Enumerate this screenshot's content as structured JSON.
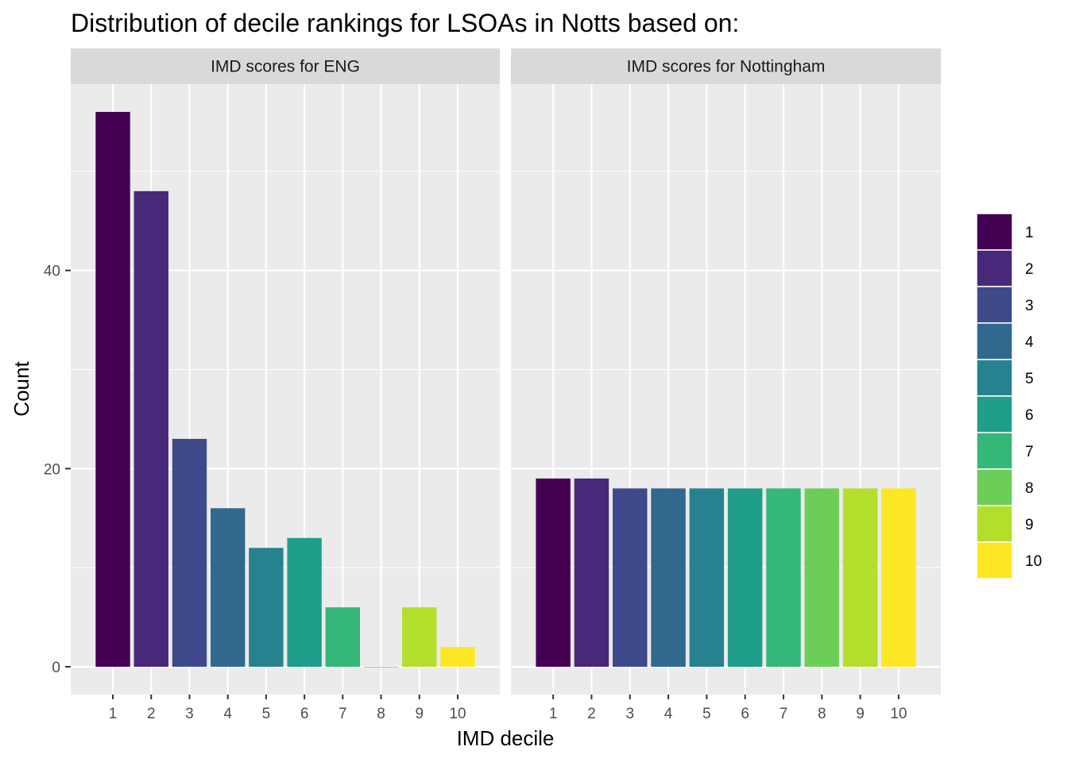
{
  "chart_data": {
    "type": "bar",
    "title": "Distribution of decile rankings for LSOAs in Notts based on:",
    "xlabel": "IMD decile",
    "ylabel": "Count",
    "ylim": [
      -2.8,
      58.8
    ],
    "yticks": [
      0,
      20,
      40
    ],
    "categories": [
      "1",
      "2",
      "3",
      "4",
      "5",
      "6",
      "7",
      "8",
      "9",
      "10"
    ],
    "colors": [
      "#440154",
      "#482878",
      "#3E4A89",
      "#31688E",
      "#26828E",
      "#1F9E89",
      "#35B779",
      "#6DCD59",
      "#B4DE2C",
      "#FDE725"
    ],
    "panel_background": "#EBEBEB",
    "strip_background": "#D9D9D9",
    "grid": true,
    "legend_position": "right",
    "legend_title": "",
    "panels": [
      {
        "strip": "IMD scores for ENG",
        "values": [
          56,
          48,
          23,
          16,
          12,
          13,
          6,
          0,
          6,
          2
        ]
      },
      {
        "strip": "IMD scores for Nottingham",
        "values": [
          19,
          19,
          18,
          18,
          18,
          18,
          18,
          18,
          18,
          18
        ]
      }
    ]
  }
}
